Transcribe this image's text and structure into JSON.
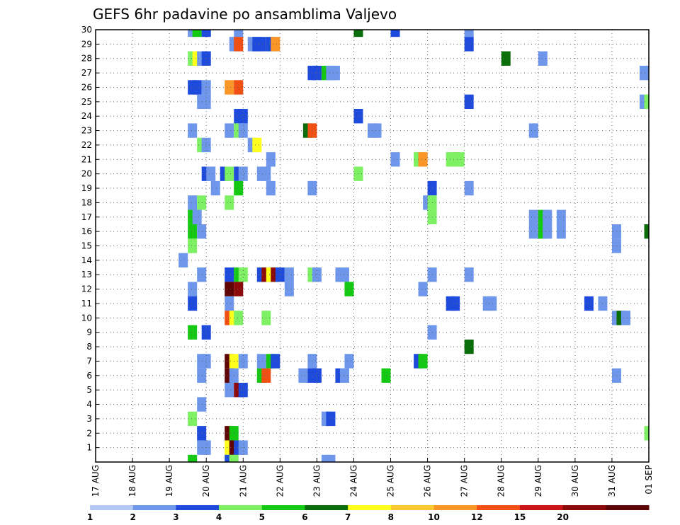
{
  "chart_data": {
    "type": "heatmap",
    "title": "GEFS 6hr padavine po ansamblima Valjevo",
    "x_tick_labels": [
      "17 AUG",
      "18 AUG",
      "19 AUG",
      "20 AUG",
      "21 AUG",
      "22 AUG",
      "23 AUG",
      "24 AUG",
      "25 AUG",
      "26 AUG",
      "27 AUG",
      "28 AUG",
      "29 AUG",
      "30 AUG",
      "31 AUG",
      "01 SEP"
    ],
    "y_tick_labels": [
      "1",
      "2",
      "3",
      "4",
      "5",
      "6",
      "7",
      "8",
      "9",
      "10",
      "11",
      "12",
      "13",
      "14",
      "15",
      "16",
      "17",
      "18",
      "19",
      "20",
      "21",
      "22",
      "23",
      "24",
      "25",
      "26",
      "27",
      "28",
      "29",
      "30"
    ],
    "x_range_steps": [
      0,
      60
    ],
    "y_range_members": [
      0,
      30
    ],
    "steps_per_day": 4,
    "grid": true,
    "colorbar": {
      "labels": [
        "1",
        "2",
        "3",
        "4",
        "5",
        "6",
        "7",
        "8",
        "10",
        "12",
        "15",
        "20"
      ],
      "colors": [
        "#b4c8f5",
        "#6e96eb",
        "#1e4bdc",
        "#7df064",
        "#14c814",
        "#0a6e0a",
        "#ffff1e",
        "#fac832",
        "#fa9628",
        "#f05014",
        "#c81414",
        "#8c0a0a",
        "#600505"
      ]
    },
    "cells": [
      [
        30,
        10.5,
        1
      ],
      [
        30,
        11,
        4
      ],
      [
        30,
        12,
        2
      ],
      [
        30,
        15.5,
        1
      ],
      [
        30,
        28.5,
        5
      ],
      [
        30,
        32.5,
        2
      ],
      [
        30,
        40.5,
        1
      ],
      [
        29,
        15,
        1
      ],
      [
        29,
        15.5,
        9
      ],
      [
        29,
        17,
        1
      ],
      [
        29,
        17.5,
        2
      ],
      [
        29,
        18,
        2
      ],
      [
        29,
        19,
        2
      ],
      [
        29,
        19.5,
        8
      ],
      [
        29,
        40.5,
        2
      ],
      [
        28,
        10.5,
        3
      ],
      [
        28,
        11,
        6
      ],
      [
        28,
        11.5,
        1
      ],
      [
        28,
        12,
        2
      ],
      [
        28,
        44.5,
        5
      ],
      [
        28,
        48.5,
        1
      ],
      [
        27,
        23.5,
        2
      ],
      [
        27,
        24,
        2
      ],
      [
        27,
        25,
        4
      ],
      [
        27,
        25.5,
        1
      ],
      [
        27,
        26,
        1
      ],
      [
        27,
        59.5,
        1
      ],
      [
        26,
        10.5,
        2
      ],
      [
        26,
        11,
        2
      ],
      [
        26,
        12,
        1
      ],
      [
        26,
        14.5,
        8
      ],
      [
        26,
        15.5,
        9
      ],
      [
        25,
        11.5,
        1
      ],
      [
        25,
        12,
        1
      ],
      [
        25,
        40.5,
        2
      ],
      [
        25,
        59.5,
        1
      ],
      [
        25,
        60,
        3
      ],
      [
        24,
        15.5,
        2
      ],
      [
        24,
        16,
        2
      ],
      [
        24,
        28.5,
        2
      ],
      [
        23,
        10.5,
        1
      ],
      [
        23,
        14.5,
        1
      ],
      [
        23,
        15.5,
        3
      ],
      [
        23,
        16,
        1
      ],
      [
        23,
        23,
        5
      ],
      [
        23,
        23.5,
        9
      ],
      [
        23,
        30,
        1
      ],
      [
        23,
        30.5,
        1
      ],
      [
        23,
        47.5,
        1
      ],
      [
        22,
        11.5,
        3
      ],
      [
        22,
        12,
        1
      ],
      [
        22,
        17,
        1
      ],
      [
        22,
        17.5,
        6
      ],
      [
        21,
        19,
        1
      ],
      [
        21,
        32.5,
        1
      ],
      [
        21,
        35,
        3
      ],
      [
        21,
        35.5,
        8
      ],
      [
        21,
        38.5,
        3
      ],
      [
        21,
        39,
        3
      ],
      [
        21,
        39.5,
        3
      ],
      [
        20,
        12,
        2
      ],
      [
        20,
        12.5,
        1
      ],
      [
        20,
        14,
        2
      ],
      [
        20,
        14.5,
        3
      ],
      [
        20,
        15.5,
        2
      ],
      [
        20,
        16,
        1
      ],
      [
        20,
        18,
        1
      ],
      [
        20,
        18.5,
        1
      ],
      [
        20,
        28.5,
        3
      ],
      [
        19,
        13,
        1
      ],
      [
        19,
        15.5,
        4
      ],
      [
        19,
        19,
        1
      ],
      [
        19,
        23.5,
        1
      ],
      [
        19,
        36.5,
        2
      ],
      [
        19,
        40.5,
        1
      ],
      [
        18,
        10.5,
        1
      ],
      [
        18,
        11.5,
        3
      ],
      [
        18,
        14.5,
        3
      ],
      [
        18,
        36,
        1
      ],
      [
        18,
        36.5,
        3
      ],
      [
        17,
        10.5,
        4
      ],
      [
        17,
        11,
        1
      ],
      [
        17,
        36.5,
        3
      ],
      [
        17,
        47.5,
        1
      ],
      [
        17,
        48.5,
        4
      ],
      [
        17,
        49,
        1
      ],
      [
        17,
        50.5,
        1
      ],
      [
        16,
        10.5,
        4
      ],
      [
        16,
        11.5,
        1
      ],
      [
        16,
        47.5,
        1
      ],
      [
        16,
        48.5,
        4
      ],
      [
        16,
        49,
        1
      ],
      [
        16,
        50.5,
        1
      ],
      [
        16,
        56.5,
        1
      ],
      [
        16,
        60,
        5
      ],
      [
        15,
        10.5,
        3
      ],
      [
        15,
        56.5,
        1
      ],
      [
        14,
        9.5,
        1
      ],
      [
        13,
        11.5,
        1
      ],
      [
        13,
        14.5,
        2
      ],
      [
        13,
        15.5,
        4
      ],
      [
        13,
        16,
        3
      ],
      [
        13,
        18,
        2
      ],
      [
        13,
        18.5,
        11
      ],
      [
        13,
        19,
        6
      ],
      [
        13,
        19.5,
        11
      ],
      [
        13,
        20,
        2
      ],
      [
        13,
        21,
        1
      ],
      [
        13,
        23.5,
        3
      ],
      [
        13,
        24,
        1
      ],
      [
        13,
        26.5,
        1
      ],
      [
        13,
        27,
        1
      ],
      [
        13,
        36.5,
        1
      ],
      [
        13,
        40.5,
        1
      ],
      [
        12,
        10.5,
        1
      ],
      [
        12,
        14.5,
        12
      ],
      [
        12,
        15.5,
        11
      ],
      [
        12,
        21,
        1
      ],
      [
        12,
        27.5,
        4
      ],
      [
        12,
        35.5,
        1
      ],
      [
        11,
        10.5,
        2
      ],
      [
        11,
        14.5,
        1
      ],
      [
        11,
        38.5,
        2
      ],
      [
        11,
        39,
        2
      ],
      [
        11,
        42.5,
        1
      ],
      [
        11,
        43,
        1
      ],
      [
        11,
        53.5,
        2
      ],
      [
        11,
        55,
        1
      ],
      [
        10,
        14.5,
        9
      ],
      [
        10,
        15,
        6
      ],
      [
        10,
        15.5,
        3
      ],
      [
        10,
        18.5,
        3
      ],
      [
        10,
        56.5,
        1
      ],
      [
        10,
        57,
        5
      ],
      [
        10,
        57.5,
        1
      ],
      [
        9,
        10.5,
        4
      ],
      [
        9,
        12,
        2
      ],
      [
        9,
        36.5,
        1
      ],
      [
        8,
        40.5,
        5
      ],
      [
        7,
        11.5,
        1
      ],
      [
        7,
        12,
        1
      ],
      [
        7,
        14.5,
        12
      ],
      [
        7,
        15,
        6
      ],
      [
        7,
        16,
        1
      ],
      [
        7,
        18,
        1
      ],
      [
        7,
        19,
        4
      ],
      [
        7,
        19.5,
        2
      ],
      [
        7,
        23.5,
        1
      ],
      [
        7,
        27.5,
        1
      ],
      [
        7,
        35,
        2
      ],
      [
        7,
        35.5,
        4
      ],
      [
        6,
        11.5,
        1
      ],
      [
        6,
        14.5,
        12
      ],
      [
        6,
        15,
        1
      ],
      [
        6,
        18,
        4
      ],
      [
        6,
        18.5,
        9
      ],
      [
        6,
        22.5,
        1
      ],
      [
        6,
        23.5,
        2
      ],
      [
        6,
        24,
        2
      ],
      [
        6,
        26.5,
        2
      ],
      [
        6,
        27,
        1
      ],
      [
        6,
        31.5,
        4
      ],
      [
        6,
        56.5,
        1
      ],
      [
        5,
        14.5,
        1
      ],
      [
        5,
        15.5,
        11
      ],
      [
        5,
        16,
        2
      ],
      [
        4,
        11.5,
        1
      ],
      [
        3,
        10.5,
        3
      ],
      [
        3,
        25,
        1
      ],
      [
        3,
        25.5,
        2
      ],
      [
        2,
        11.5,
        2
      ],
      [
        2,
        14.5,
        12
      ],
      [
        2,
        15,
        4
      ],
      [
        2,
        60,
        3
      ],
      [
        1,
        11.5,
        1
      ],
      [
        1,
        12,
        1
      ],
      [
        1,
        14.5,
        6
      ],
      [
        1,
        15,
        12
      ],
      [
        1,
        15.5,
        2
      ],
      [
        1,
        16,
        1
      ],
      [
        0,
        10.5,
        4
      ],
      [
        0,
        14.5,
        2
      ],
      [
        0,
        15,
        3
      ],
      [
        0,
        25,
        1
      ],
      [
        0,
        25.5,
        1
      ]
    ]
  }
}
